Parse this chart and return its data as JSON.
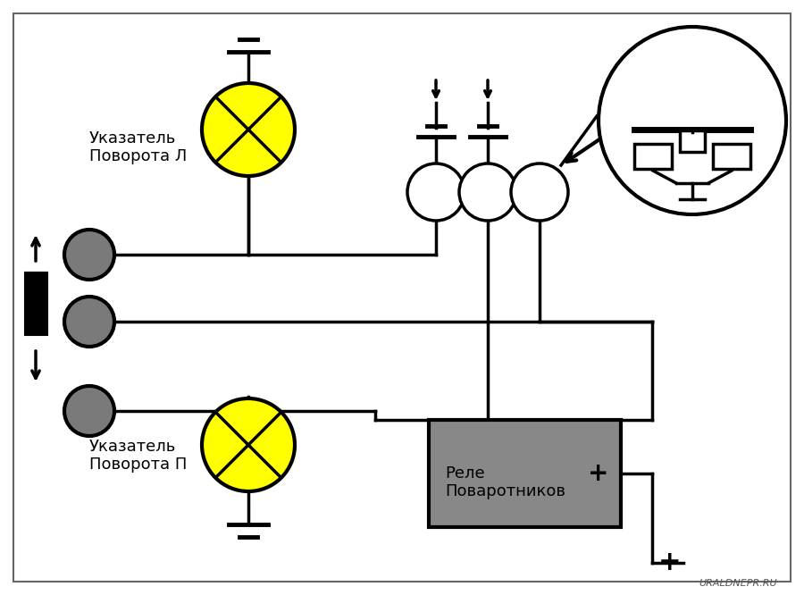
{
  "bg_color": "#ffffff",
  "line_color": "#000000",
  "line_width": 2.5,
  "lamp_color_yellow": "#ffff00",
  "lamp_color_gray": "#7a7a7a",
  "relay_color": "#888888",
  "text_color": "#000000",
  "watermark": "URALDNEPR.RU",
  "label_L": "Указатель\nПоворота Л",
  "label_P": "Указатель\nПоворота П",
  "label_relay": "Реле\nПоваротников",
  "label_plus_relay": "+",
  "label_plus_bottom": "+"
}
